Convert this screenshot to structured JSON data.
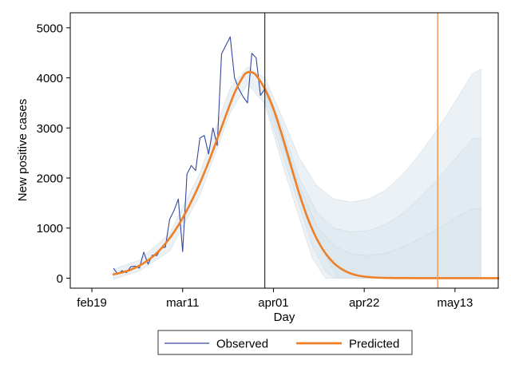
{
  "chart_data": {
    "type": "line",
    "title": "",
    "xlabel": "Day",
    "ylabel": "New positive cases",
    "x_domain": [
      "2020-02-14",
      "2020-05-23"
    ],
    "ylim": [
      -200,
      5300
    ],
    "x_ticks": [
      {
        "date": "2020-02-19",
        "label": "feb19"
      },
      {
        "date": "2020-03-11",
        "label": "mar11"
      },
      {
        "date": "2020-04-01",
        "label": "apr01"
      },
      {
        "date": "2020-04-22",
        "label": "apr22"
      },
      {
        "date": "2020-05-13",
        "label": "may13"
      }
    ],
    "y_ticks": [
      0,
      1000,
      2000,
      3000,
      4000,
      5000
    ],
    "grid": false,
    "legend_position": "bottom",
    "colors": {
      "observed": "#3548a0",
      "predicted": "#ee7f26",
      "vline_dark": "#333333",
      "vline_orange": "#f0a062",
      "band": "#dbe6ed"
    },
    "vertical_lines": [
      {
        "date": "2020-03-30",
        "color": "#333333"
      },
      {
        "date": "2020-05-09",
        "color": "#f0a062"
      }
    ],
    "series": [
      {
        "name": "Observed",
        "points": [
          [
            "2020-02-24",
            200
          ],
          [
            "2020-02-25",
            80
          ],
          [
            "2020-02-26",
            150
          ],
          [
            "2020-02-27",
            110
          ],
          [
            "2020-02-28",
            230
          ],
          [
            "2020-02-29",
            240
          ],
          [
            "2020-03-01",
            200
          ],
          [
            "2020-03-02",
            520
          ],
          [
            "2020-03-03",
            280
          ],
          [
            "2020-03-04",
            460
          ],
          [
            "2020-03-05",
            450
          ],
          [
            "2020-03-06",
            600
          ],
          [
            "2020-03-07",
            620
          ],
          [
            "2020-03-08",
            1180
          ],
          [
            "2020-03-09",
            1350
          ],
          [
            "2020-03-10",
            1580
          ],
          [
            "2020-03-11",
            530
          ],
          [
            "2020-03-12",
            2080
          ],
          [
            "2020-03-13",
            2250
          ],
          [
            "2020-03-14",
            2150
          ],
          [
            "2020-03-15",
            2800
          ],
          [
            "2020-03-16",
            2850
          ],
          [
            "2020-03-17",
            2480
          ],
          [
            "2020-03-18",
            3000
          ],
          [
            "2020-03-19",
            2650
          ],
          [
            "2020-03-20",
            4480
          ],
          [
            "2020-03-21",
            4650
          ],
          [
            "2020-03-22",
            4820
          ],
          [
            "2020-03-23",
            4000
          ],
          [
            "2020-03-24",
            3780
          ],
          [
            "2020-03-25",
            3620
          ],
          [
            "2020-03-26",
            3500
          ],
          [
            "2020-03-27",
            4490
          ],
          [
            "2020-03-28",
            4400
          ],
          [
            "2020-03-29",
            3650
          ],
          [
            "2020-03-30",
            3780
          ]
        ]
      },
      {
        "name": "Predicted",
        "points": [
          [
            "2020-02-24",
            75
          ],
          [
            "2020-02-26",
            115
          ],
          [
            "2020-02-28",
            170
          ],
          [
            "2020-03-01",
            250
          ],
          [
            "2020-03-03",
            360
          ],
          [
            "2020-03-05",
            500
          ],
          [
            "2020-03-07",
            690
          ],
          [
            "2020-03-09",
            920
          ],
          [
            "2020-03-11",
            1200
          ],
          [
            "2020-03-13",
            1530
          ],
          [
            "2020-03-15",
            1900
          ],
          [
            "2020-03-17",
            2320
          ],
          [
            "2020-03-19",
            2780
          ],
          [
            "2020-03-21",
            3250
          ],
          [
            "2020-03-23",
            3700
          ],
          [
            "2020-03-25",
            4030
          ],
          [
            "2020-03-26",
            4110
          ],
          [
            "2020-03-27",
            4110
          ],
          [
            "2020-03-28",
            4050
          ],
          [
            "2020-03-30",
            3780
          ],
          [
            "2020-04-01",
            3380
          ],
          [
            "2020-04-03",
            2850
          ],
          [
            "2020-04-05",
            2260
          ],
          [
            "2020-04-07",
            1680
          ],
          [
            "2020-04-09",
            1180
          ],
          [
            "2020-04-11",
            790
          ],
          [
            "2020-04-13",
            500
          ],
          [
            "2020-04-15",
            300
          ],
          [
            "2020-04-17",
            170
          ],
          [
            "2020-04-19",
            90
          ],
          [
            "2020-04-21",
            45
          ],
          [
            "2020-04-24",
            15
          ],
          [
            "2020-04-28",
            4
          ],
          [
            "2020-05-05",
            1
          ],
          [
            "2020-05-23",
            0
          ]
        ]
      }
    ],
    "bands": [
      {
        "label": "outer",
        "upper": [
          [
            "2020-02-24",
            180
          ],
          [
            "2020-03-01",
            360
          ],
          [
            "2020-03-08",
            900
          ],
          [
            "2020-03-15",
            2100
          ],
          [
            "2020-03-22",
            3800
          ],
          [
            "2020-03-26",
            4220
          ],
          [
            "2020-03-30",
            4000
          ],
          [
            "2020-04-03",
            3220
          ],
          [
            "2020-04-07",
            2400
          ],
          [
            "2020-04-11",
            1850
          ],
          [
            "2020-04-15",
            1580
          ],
          [
            "2020-04-19",
            1520
          ],
          [
            "2020-04-23",
            1580
          ],
          [
            "2020-04-27",
            1760
          ],
          [
            "2020-05-01",
            2080
          ],
          [
            "2020-05-05",
            2500
          ],
          [
            "2020-05-09",
            2980
          ],
          [
            "2020-05-13",
            3520
          ],
          [
            "2020-05-17",
            4080
          ],
          [
            "2020-05-19",
            4180
          ]
        ],
        "lower": [
          [
            "2020-02-24",
            -20
          ],
          [
            "2020-03-01",
            140
          ],
          [
            "2020-03-08",
            540
          ],
          [
            "2020-03-15",
            1660
          ],
          [
            "2020-03-22",
            3300
          ],
          [
            "2020-03-26",
            3880
          ],
          [
            "2020-03-30",
            3480
          ],
          [
            "2020-04-03",
            2300
          ],
          [
            "2020-04-07",
            1200
          ],
          [
            "2020-04-10",
            400
          ],
          [
            "2020-04-13",
            0
          ],
          [
            "2020-05-19",
            0
          ]
        ]
      },
      {
        "label": "middle",
        "upper": [
          [
            "2020-03-30",
            3900
          ],
          [
            "2020-04-03",
            3000
          ],
          [
            "2020-04-07",
            2000
          ],
          [
            "2020-04-11",
            1320
          ],
          [
            "2020-04-15",
            1000
          ],
          [
            "2020-04-19",
            920
          ],
          [
            "2020-04-23",
            950
          ],
          [
            "2020-04-27",
            1070
          ],
          [
            "2020-05-01",
            1300
          ],
          [
            "2020-05-05",
            1620
          ],
          [
            "2020-05-09",
            1980
          ],
          [
            "2020-05-13",
            2380
          ],
          [
            "2020-05-17",
            2780
          ],
          [
            "2020-05-19",
            2800
          ]
        ],
        "lower": [
          [
            "2020-03-30",
            3560
          ],
          [
            "2020-04-03",
            2500
          ],
          [
            "2020-04-07",
            1450
          ],
          [
            "2020-04-10",
            650
          ],
          [
            "2020-04-13",
            150
          ],
          [
            "2020-04-15",
            0
          ],
          [
            "2020-05-19",
            0
          ]
        ]
      },
      {
        "label": "inner",
        "upper": [
          [
            "2020-03-30",
            3820
          ],
          [
            "2020-04-03",
            2900
          ],
          [
            "2020-04-07",
            1850
          ],
          [
            "2020-04-11",
            1050
          ],
          [
            "2020-04-15",
            650
          ],
          [
            "2020-04-19",
            480
          ],
          [
            "2020-04-23",
            450
          ],
          [
            "2020-04-27",
            500
          ],
          [
            "2020-05-01",
            620
          ],
          [
            "2020-05-05",
            790
          ],
          [
            "2020-05-09",
            990
          ],
          [
            "2020-05-13",
            1200
          ],
          [
            "2020-05-17",
            1380
          ],
          [
            "2020-05-19",
            1400
          ]
        ],
        "lower": [
          [
            "2020-03-30",
            3700
          ],
          [
            "2020-04-03",
            2700
          ],
          [
            "2020-04-07",
            1650
          ],
          [
            "2020-04-11",
            820
          ],
          [
            "2020-04-14",
            300
          ],
          [
            "2020-04-16",
            0
          ],
          [
            "2020-05-19",
            0
          ]
        ]
      }
    ]
  }
}
